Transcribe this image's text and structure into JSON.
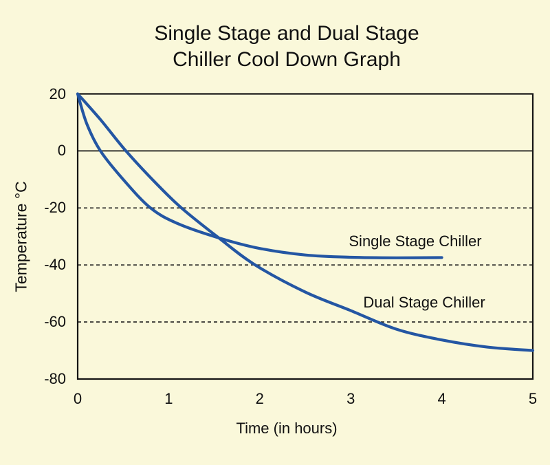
{
  "colors": {
    "background": "#faf8da",
    "curve_blue": "#2456a3",
    "axis_black": "#141414",
    "dashed_gridline": "#1c1c1c"
  },
  "title": {
    "line1": "Single Stage and Dual Stage",
    "line2": "Chiller Cool Down Graph"
  },
  "axes": {
    "x_title": "Time (in hours)",
    "y_title": "Temperature °C"
  },
  "chart_data": {
    "type": "line",
    "title": "Single Stage and Dual Stage Chiller Cool Down Graph",
    "xlabel": "Time (in hours)",
    "ylabel": "Temperature °C",
    "xlim": [
      0,
      5
    ],
    "ylim": [
      -80,
      20
    ],
    "xticks": [
      0,
      1,
      2,
      3,
      4,
      5
    ],
    "yticks": [
      20,
      0,
      -20,
      -40,
      -60,
      -80
    ],
    "gridlines": {
      "solid_at": [
        0
      ],
      "dashed_at": [
        -20,
        -40,
        -60
      ]
    },
    "legend_position": "inline-labels",
    "series": [
      {
        "name": "Single Stage Chiller",
        "color": "#2456a3",
        "points": [
          [
            0,
            20
          ],
          [
            0.1,
            9.5
          ],
          [
            0.25,
            0
          ],
          [
            0.5,
            -10
          ],
          [
            0.8,
            -20
          ],
          [
            1.1,
            -25.5
          ],
          [
            1.55,
            -30.5
          ],
          [
            2.0,
            -34.2
          ],
          [
            2.5,
            -36.5
          ],
          [
            3.0,
            -37.3
          ],
          [
            3.5,
            -37.5
          ],
          [
            4.0,
            -37.4
          ]
        ]
      },
      {
        "name": "Dual Stage Chiller",
        "color": "#2456a3",
        "points": [
          [
            0,
            20
          ],
          [
            0.25,
            11
          ],
          [
            0.53,
            0
          ],
          [
            0.85,
            -11
          ],
          [
            1.14,
            -20
          ],
          [
            1.55,
            -30.5
          ],
          [
            1.95,
            -40
          ],
          [
            2.5,
            -49.5
          ],
          [
            3.0,
            -56
          ],
          [
            3.5,
            -62.5
          ],
          [
            4.0,
            -66.3
          ],
          [
            4.5,
            -68.8
          ],
          [
            5.0,
            -70
          ]
        ]
      }
    ]
  }
}
